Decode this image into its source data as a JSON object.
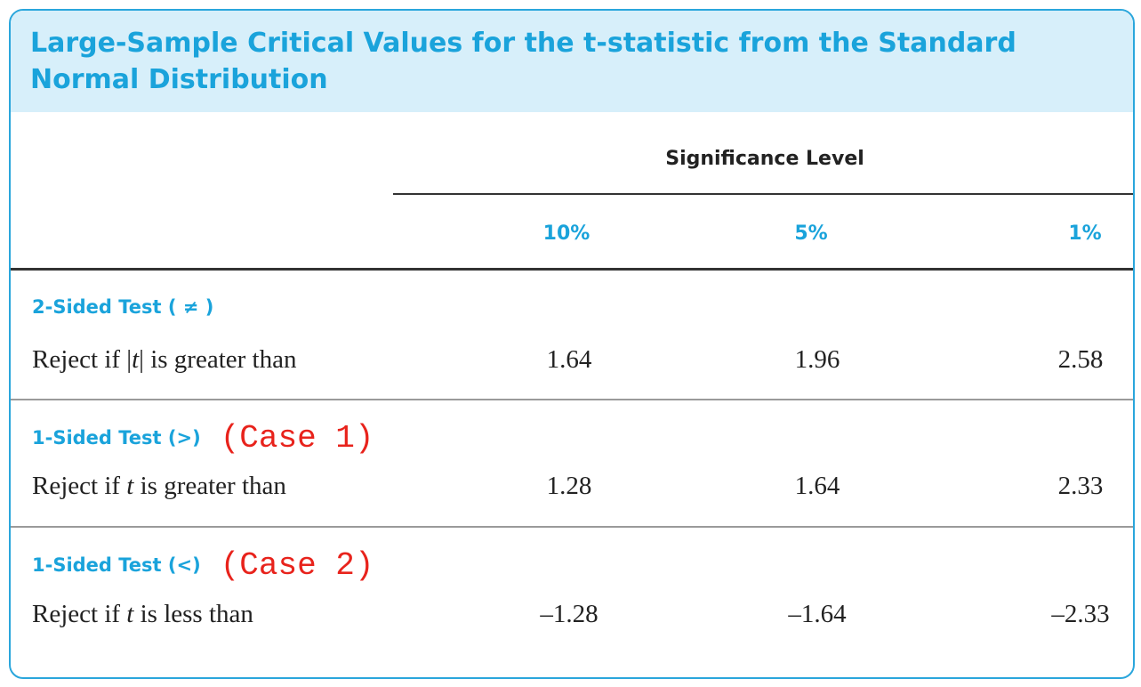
{
  "title": "Large-Sample Critical Values for the t-statistic from the Standard Normal Distribution",
  "header": {
    "group_label": "Significance Level",
    "levels": [
      "10%",
      "5%",
      "1%"
    ]
  },
  "rows": [
    {
      "test": "2-Sided Test ( ≠ )",
      "note": "",
      "label_pre": "Reject if |",
      "label_var": "t",
      "label_post": "| is greater than",
      "values": [
        "1.64",
        "1.96",
        "2.58"
      ]
    },
    {
      "test": "1-Sided Test (>)",
      "note": "(Case 1)",
      "label_pre": "Reject if ",
      "label_var": "t",
      "label_post": " is greater than",
      "values": [
        "1.28",
        "1.64",
        "2.33"
      ]
    },
    {
      "test": "1-Sided Test (<)",
      "note": "(Case 2)",
      "label_pre": "Reject if ",
      "label_var": "t",
      "label_post": " is less than",
      "values": [
        "–1.28",
        "–1.64",
        "–2.33"
      ]
    }
  ],
  "colors": {
    "accent": "#1aa3db",
    "title_band": "#d7effa",
    "annotation": "#e8231c"
  }
}
